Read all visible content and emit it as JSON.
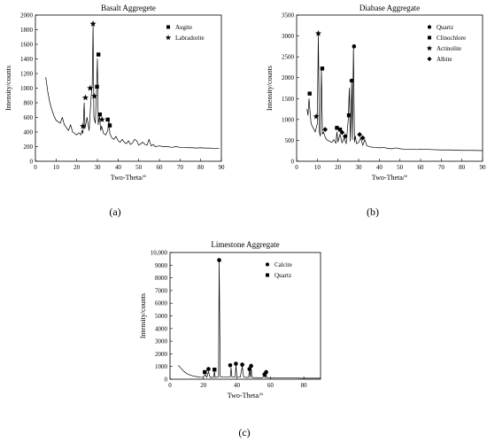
{
  "panels": [
    {
      "caption": "(a)",
      "chart_data": {
        "type": "line",
        "title": "Basalt Aggregete",
        "xlabel": "Two-Theta/°",
        "ylabel": "Intensity/counts",
        "xlim": [
          0,
          90
        ],
        "ylim": [
          0,
          2000
        ],
        "x_ticks": [
          0,
          10,
          20,
          30,
          40,
          50,
          60,
          70,
          80,
          90
        ],
        "y_ticks": [
          0,
          200,
          400,
          600,
          800,
          1000,
          1200,
          1400,
          1600,
          1800,
          2000
        ],
        "y_tick_labels": [
          "0",
          "200",
          "400",
          "600",
          "800",
          "1000",
          "1200",
          "1400",
          "1600",
          "1800",
          "2000"
        ],
        "grid": false,
        "legend_position": "top-right",
        "legend": [
          {
            "marker": "square",
            "label": "Augite"
          },
          {
            "marker": "star",
            "label": "Labradorite"
          }
        ],
        "series": [
          {
            "x": [
              5,
              6,
              7,
              8,
              9,
              10,
              11,
              12,
              13,
              14,
              15,
              16,
              17,
              18,
              19,
              20,
              21,
              22,
              22.5,
              23,
              23.6,
              24,
              25,
              26,
              27,
              27.5,
              27.9,
              28.3,
              29,
              29.6,
              30,
              30.4,
              31,
              31.6,
              32,
              33,
              34,
              35,
              35.6,
              36,
              37,
              38,
              39,
              40,
              41,
              42,
              43,
              44,
              45,
              46,
              47,
              48,
              49,
              50,
              51,
              52,
              53,
              54,
              55,
              56,
              57,
              58,
              60,
              62,
              64,
              66,
              68,
              70,
              72,
              74,
              76,
              78,
              80,
              82,
              84,
              86,
              88,
              89
            ],
            "y": [
              1150,
              950,
              800,
              700,
              620,
              560,
              540,
              520,
              600,
              500,
              460,
              420,
              500,
              400,
              380,
              360,
              390,
              360,
              420,
              380,
              800,
              450,
              600,
              420,
              900,
              1050,
              1860,
              600,
              520,
              1000,
              1400,
              500,
              620,
              420,
              480,
              380,
              360,
              420,
              560,
              380,
              320,
              300,
              340,
              280,
              260,
              300,
              260,
              240,
              280,
              230,
              250,
              300,
              280,
              220,
              240,
              260,
              230,
              220,
              300,
              210,
              230,
              200,
              210,
              200,
              200,
              190,
              200,
              190,
              190,
              185,
              185,
              180,
              185,
              180,
              180,
              178,
              178,
              175
            ]
          }
        ],
        "markers": [
          {
            "type": "star",
            "x": 23,
            "y": 480
          },
          {
            "type": "star",
            "x": 24.2,
            "y": 870
          },
          {
            "type": "star",
            "x": 26.5,
            "y": 1000
          },
          {
            "type": "star",
            "x": 27.9,
            "y": 1880
          },
          {
            "type": "star",
            "x": 28.5,
            "y": 890
          },
          {
            "type": "square",
            "x": 29.8,
            "y": 1020
          },
          {
            "type": "square",
            "x": 30.5,
            "y": 1460
          },
          {
            "type": "square",
            "x": 31.2,
            "y": 640
          },
          {
            "type": "star",
            "x": 32.2,
            "y": 570
          },
          {
            "type": "square",
            "x": 35,
            "y": 570
          },
          {
            "type": "square",
            "x": 36,
            "y": 490
          }
        ]
      }
    },
    {
      "caption": "(b)",
      "chart_data": {
        "type": "line",
        "title": "Diabase Aggregate",
        "xlabel": "Two-Theta/°",
        "ylabel": "Intensity/counts",
        "xlim": [
          0,
          90
        ],
        "ylim": [
          0,
          3500
        ],
        "x_ticks": [
          0,
          10,
          20,
          30,
          40,
          50,
          60,
          70,
          80,
          90
        ],
        "y_ticks": [
          0,
          500,
          1000,
          1500,
          2000,
          2500,
          3000,
          3500
        ],
        "y_tick_labels": [
          "0",
          "500",
          "1000",
          "1500",
          "2000",
          "2500",
          "3000",
          "3500"
        ],
        "grid": false,
        "legend_position": "top-right",
        "legend": [
          {
            "marker": "circle",
            "label": "Quartz"
          },
          {
            "marker": "square",
            "label": "Clinochlore"
          },
          {
            "marker": "star",
            "label": "Actinolite"
          },
          {
            "marker": "diamond",
            "label": "Albite"
          }
        ],
        "series": [
          {
            "x": [
              5,
              5.5,
              6,
              6.3,
              7,
              8,
              9,
              10,
              10.5,
              11,
              11.5,
              12,
              12.5,
              13,
              14,
              15,
              16,
              17,
              18,
              19,
              19.5,
              20,
              21,
              22,
              23,
              24,
              25,
              25.5,
              26,
              26.6,
              27,
              27.5,
              28,
              28.4,
              29,
              30,
              31,
              32,
              33,
              34,
              36,
              38,
              40,
              42,
              44,
              46,
              48,
              50,
              52,
              55,
              58,
              60,
              65,
              70,
              75,
              80,
              85,
              90
            ],
            "y": [
              1250,
              1100,
              1500,
              1300,
              900,
              800,
              700,
              900,
              3050,
              700,
              600,
              2200,
              650,
              700,
              550,
              500,
              480,
              450,
              520,
              430,
              700,
              460,
              650,
              440,
              560,
              420,
              1000,
              1750,
              480,
              1900,
              520,
              2750,
              460,
              600,
              420,
              450,
              560,
              380,
              520,
              370,
              340,
              330,
              320,
              330,
              310,
              300,
              320,
              300,
              290,
              290,
              280,
              290,
              280,
              270,
              270,
              260,
              260,
              255
            ]
          }
        ],
        "markers": [
          {
            "type": "square",
            "x": 6.3,
            "y": 1620
          },
          {
            "type": "star",
            "x": 9.5,
            "y": 1070
          },
          {
            "type": "star",
            "x": 10.5,
            "y": 3060
          },
          {
            "type": "square",
            "x": 12.4,
            "y": 2220
          },
          {
            "type": "diamond",
            "x": 13.8,
            "y": 760
          },
          {
            "type": "square",
            "x": 19.5,
            "y": 800
          },
          {
            "type": "square",
            "x": 21,
            "y": 760
          },
          {
            "type": "diamond",
            "x": 22,
            "y": 690
          },
          {
            "type": "diamond",
            "x": 23.5,
            "y": 600
          },
          {
            "type": "square",
            "x": 25.3,
            "y": 1100
          },
          {
            "type": "circle",
            "x": 26.6,
            "y": 1930
          },
          {
            "type": "circle",
            "x": 27.8,
            "y": 2750
          },
          {
            "type": "diamond",
            "x": 30.5,
            "y": 640
          },
          {
            "type": "diamond",
            "x": 32,
            "y": 560
          }
        ]
      }
    },
    {
      "caption": "(c)",
      "chart_data": {
        "type": "line",
        "title": "Limestone Aggregate",
        "xlabel": "Two-Theta/°",
        "ylabel": "Intensity/counts",
        "xlim": [
          0,
          90
        ],
        "ylim": [
          0,
          10000
        ],
        "x_ticks": [
          0,
          20,
          40,
          60,
          80
        ],
        "y_ticks": [
          0,
          1000,
          2000,
          3000,
          4000,
          5000,
          6000,
          7000,
          8000,
          9000,
          10000
        ],
        "y_tick_labels": [
          "0",
          "1000",
          "2000",
          "3000",
          "4000",
          "5000",
          "6000",
          "7000",
          "8000",
          "9000",
          "10,000"
        ],
        "grid": false,
        "legend_position": "top-right",
        "legend": [
          {
            "marker": "circle",
            "label": "Calcite"
          },
          {
            "marker": "square",
            "label": "Quartz"
          }
        ],
        "series": [
          {
            "x": [
              5,
              6,
              7,
              8,
              10,
              12,
              14,
              16,
              18,
              20,
              21,
              22,
              23,
              24,
              25,
              26,
              26.6,
              27,
              28,
              29,
              29.4,
              30,
              32,
              34,
              36,
              36.5,
              37,
              38,
              39,
              39.4,
              40,
              42,
              43.2,
              44,
              46,
              47,
              47.5,
              48,
              48.5,
              49,
              50,
              52,
              55,
              56.5,
              57,
              57.5,
              58,
              60,
              65,
              70,
              75,
              80,
              85,
              90
            ],
            "y": [
              1100,
              950,
              800,
              650,
              450,
              330,
              250,
              200,
              160,
              150,
              380,
              140,
              600,
              140,
              150,
              150,
              600,
              140,
              160,
              180,
              9400,
              200,
              170,
              160,
              180,
              900,
              180,
              160,
              200,
              1100,
              180,
              160,
              1000,
              170,
              140,
              150,
              700,
              150,
              900,
              140,
              130,
              120,
              110,
              250,
              110,
              380,
              110,
              100,
              100,
              90,
              90,
              80,
              80,
              80
            ]
          }
        ],
        "markers": [
          {
            "type": "square",
            "x": 20.8,
            "y": 560
          },
          {
            "type": "circle",
            "x": 23,
            "y": 800
          },
          {
            "type": "square",
            "x": 26.6,
            "y": 760
          },
          {
            "type": "circle",
            "x": 29.4,
            "y": 9400
          },
          {
            "type": "circle",
            "x": 36,
            "y": 1100
          },
          {
            "type": "circle",
            "x": 39.4,
            "y": 1220
          },
          {
            "type": "circle",
            "x": 43.2,
            "y": 1150
          },
          {
            "type": "circle",
            "x": 47.5,
            "y": 800
          },
          {
            "type": "circle",
            "x": 48.5,
            "y": 1050
          },
          {
            "type": "circle",
            "x": 56.5,
            "y": 380
          },
          {
            "type": "circle",
            "x": 57.5,
            "y": 560
          }
        ]
      }
    }
  ]
}
